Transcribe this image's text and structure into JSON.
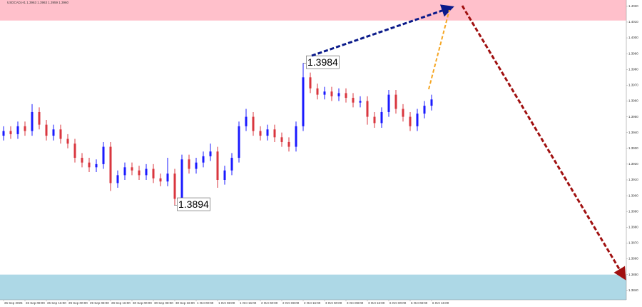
{
  "chart_data": {
    "type": "candlestick",
    "title": "USDCAD,H1 1.3963 1.3963 1.3959 1.3960",
    "up_color": "#1a1aff",
    "down_color": "#d9363e",
    "categories": [
      "26 Sep 2025",
      null,
      null,
      "26 Sep 08:00",
      null,
      null,
      "26 Sep 16:00",
      null,
      null,
      "29 Sep 00:00",
      null,
      null,
      "29 Sep 08:00",
      null,
      null,
      "29 Sep 16:00",
      null,
      null,
      "30 Sep 00:00",
      null,
      null,
      "30 Sep 08:00",
      null,
      null,
      "30 Sep 16:00",
      null,
      null,
      "1 Oct 00:00",
      null,
      null,
      "1 Oct 08:00",
      null,
      null,
      "1 Oct 16:00",
      null,
      null,
      "2 Oct 00:00",
      null,
      null,
      "2 Oct 08:00",
      null,
      null,
      "2 Oct 16:00",
      null,
      null,
      "3 Oct 00:00",
      null,
      null,
      "3 Oct 08:00",
      null,
      null,
      "3 Oct 16:00",
      null,
      null,
      "6 Oct 00:00",
      null,
      null,
      "6 Oct 08:00",
      null,
      null,
      "6 Oct 16:00"
    ],
    "open": [
      1.3938,
      1.3941,
      1.3939,
      1.3944,
      1.3941,
      1.3953,
      1.3945,
      1.3938,
      1.3942,
      1.3936,
      1.3933,
      1.3924,
      1.3921,
      1.3918,
      1.392,
      1.3931,
      1.3908,
      1.3913,
      1.3918,
      1.3916,
      1.3913,
      1.3917,
      1.3911,
      1.3909,
      1.3914,
      1.3898,
      1.3923,
      1.3917,
      1.3921,
      1.3925,
      1.3928,
      1.391,
      1.3916,
      1.3924,
      1.3944,
      1.395,
      1.3941,
      1.3938,
      1.3942,
      1.3937,
      1.3934,
      1.3931,
      1.3944,
      1.3975,
      1.3968,
      1.3964,
      1.3966,
      1.3963,
      1.3965,
      1.3962,
      1.3959,
      1.396,
      1.395,
      1.3946,
      1.3953,
      1.3964,
      1.3955,
      1.395,
      1.3944,
      1.3952,
      1.3957
    ],
    "high": [
      1.3944,
      1.3944,
      1.3947,
      1.3947,
      1.3958,
      1.3956,
      1.3948,
      1.3945,
      1.3945,
      1.3939,
      1.3936,
      1.3927,
      1.3924,
      1.3923,
      1.3934,
      1.3934,
      1.3916,
      1.3921,
      1.3921,
      1.3919,
      1.392,
      1.392,
      1.3914,
      1.3924,
      1.3917,
      1.3926,
      1.3926,
      1.3924,
      1.3928,
      1.3933,
      1.3931,
      1.3919,
      1.3927,
      1.3947,
      1.3955,
      1.3953,
      1.3944,
      1.3945,
      1.3945,
      1.394,
      1.3937,
      1.3947,
      1.3984,
      1.3978,
      1.3971,
      1.3969,
      1.3969,
      1.3968,
      1.3968,
      1.3965,
      1.3963,
      1.3963,
      1.3953,
      1.3956,
      1.3967,
      1.3967,
      1.3958,
      1.3953,
      1.3955,
      1.396,
      1.3964
    ],
    "low": [
      1.3935,
      1.3936,
      1.3936,
      1.3938,
      1.3938,
      1.3942,
      1.3935,
      1.3935,
      1.3933,
      1.393,
      1.3921,
      1.3918,
      1.3915,
      1.3915,
      1.3917,
      1.3903,
      1.3905,
      1.391,
      1.3913,
      1.391,
      1.391,
      1.3908,
      1.3906,
      1.3906,
      1.3894,
      1.3895,
      1.3914,
      1.3914,
      1.3918,
      1.3922,
      1.3905,
      1.3907,
      1.3913,
      1.3921,
      1.3941,
      1.3938,
      1.3935,
      1.3935,
      1.3934,
      1.3931,
      1.3928,
      1.3928,
      1.3941,
      1.3965,
      1.3961,
      1.3961,
      1.396,
      1.396,
      1.3959,
      1.3956,
      1.3956,
      1.3945,
      1.3943,
      1.3943,
      1.395,
      1.3952,
      1.3947,
      1.3941,
      1.3941,
      1.3949,
      1.3954
    ],
    "close": [
      1.3941,
      1.3939,
      1.3944,
      1.3941,
      1.3953,
      1.3945,
      1.3938,
      1.3942,
      1.3936,
      1.3933,
      1.3924,
      1.3921,
      1.3918,
      1.392,
      1.3931,
      1.3908,
      1.3913,
      1.3918,
      1.3916,
      1.3913,
      1.3917,
      1.3911,
      1.3909,
      1.3914,
      1.3898,
      1.3923,
      1.3917,
      1.3921,
      1.3925,
      1.3928,
      1.391,
      1.3916,
      1.3924,
      1.3944,
      1.395,
      1.3941,
      1.3938,
      1.3942,
      1.3937,
      1.3934,
      1.3931,
      1.3944,
      1.3975,
      1.3968,
      1.3964,
      1.3966,
      1.3963,
      1.3965,
      1.3962,
      1.3959,
      1.396,
      1.395,
      1.3946,
      1.3953,
      1.3964,
      1.3955,
      1.395,
      1.3944,
      1.3952,
      1.3957,
      1.3961
    ],
    "annotations": [
      "1.3984",
      "1.3894"
    ],
    "zones": [
      {
        "from": 1.4011,
        "to": 1.4024,
        "color": "#ffc0cb"
      },
      {
        "from": 1.3834,
        "to": 1.385,
        "color": "#add8e6"
      }
    ],
    "ylim": [
      1.3834,
      1.4024
    ],
    "yticks": [
      {
        "value": 1.384,
        "label": "1.3840"
      },
      {
        "value": 1.385,
        "label": "1.3850"
      },
      {
        "value": 1.386,
        "label": "1.3860"
      },
      {
        "value": 1.387,
        "label": "1.3870"
      },
      {
        "value": 1.388,
        "label": "1.3880"
      },
      {
        "value": 1.389,
        "label": "1.3890"
      },
      {
        "value": 1.39,
        "label": "1.3900"
      },
      {
        "value": 1.391,
        "label": "1.3910"
      },
      {
        "value": 1.392,
        "label": "1.3920"
      },
      {
        "value": 1.393,
        "label": "1.3930"
      },
      {
        "value": 1.394,
        "label": "1.3940"
      },
      {
        "value": 1.395,
        "label": "1.3950"
      },
      {
        "value": 1.396,
        "label": "1.3960"
      },
      {
        "value": 1.397,
        "label": "1.3970"
      },
      {
        "value": 1.398,
        "label": "1.3980"
      },
      {
        "value": 1.399,
        "label": "1.3990"
      },
      {
        "value": 1.4,
        "label": "1.4000"
      },
      {
        "value": 1.401,
        "label": "1.4010"
      },
      {
        "value": 1.402,
        "label": "1.4020"
      }
    ]
  }
}
